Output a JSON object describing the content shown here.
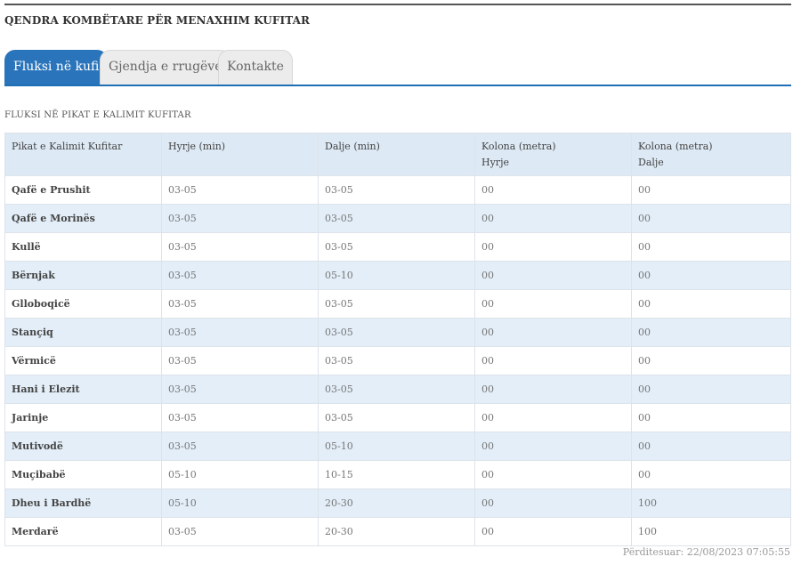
{
  "header": {
    "title": "QENDRA KOMBËTARE PËR MENAXHIM KUFITAR"
  },
  "tabs": [
    {
      "label": "Fluksi në kufi",
      "active": true
    },
    {
      "label": "Gjendja e rrugëve",
      "active": false
    },
    {
      "label": "Kontakte",
      "active": false
    }
  ],
  "section": {
    "title": "FLUKSI NË PIKAT E KALIMIT KUFITAR"
  },
  "table": {
    "headers": [
      {
        "line1": "Pikat e Kalimit Kufitar",
        "line2": ""
      },
      {
        "line1": "Hyrje (min)",
        "line2": ""
      },
      {
        "line1": "Dalje (min)",
        "line2": ""
      },
      {
        "line1": "Kolona (metra)",
        "line2": "Hyrje"
      },
      {
        "line1": "Kolona (metra)",
        "line2": "Dalje"
      }
    ],
    "rows": [
      [
        "Qafë e Prushit",
        "03-05",
        "03-05",
        "00",
        "00"
      ],
      [
        "Qafë e Morinës",
        "03-05",
        "03-05",
        "00",
        "00"
      ],
      [
        "Kullë",
        "03-05",
        "03-05",
        "00",
        "00"
      ],
      [
        "Bërnjak",
        "03-05",
        "05-10",
        "00",
        "00"
      ],
      [
        "Glloboqicë",
        "03-05",
        "03-05",
        "00",
        "00"
      ],
      [
        "Stançiq",
        "03-05",
        "03-05",
        "00",
        "00"
      ],
      [
        "Vërmicë",
        "03-05",
        "03-05",
        "00",
        "00"
      ],
      [
        "Hani i Elezit",
        "03-05",
        "03-05",
        "00",
        "00"
      ],
      [
        "Jarinje",
        "03-05",
        "03-05",
        "00",
        "00"
      ],
      [
        "Mutivodë",
        "03-05",
        "05-10",
        "00",
        "00"
      ],
      [
        "Muçibabë",
        "05-10",
        "10-15",
        "00",
        "00"
      ],
      [
        "Dheu i Bardhë",
        "05-10",
        "20-30",
        "00",
        "100"
      ],
      [
        "Merdarë",
        "03-05",
        "20-30",
        "00",
        "100"
      ]
    ]
  },
  "footer": {
    "updated": "Përditesuar: 22/08/2023 07:05:55"
  },
  "colors": {
    "accent": "#2a74bb",
    "row_alt": "#e3eef8",
    "header_bg": "#dde9f4"
  }
}
